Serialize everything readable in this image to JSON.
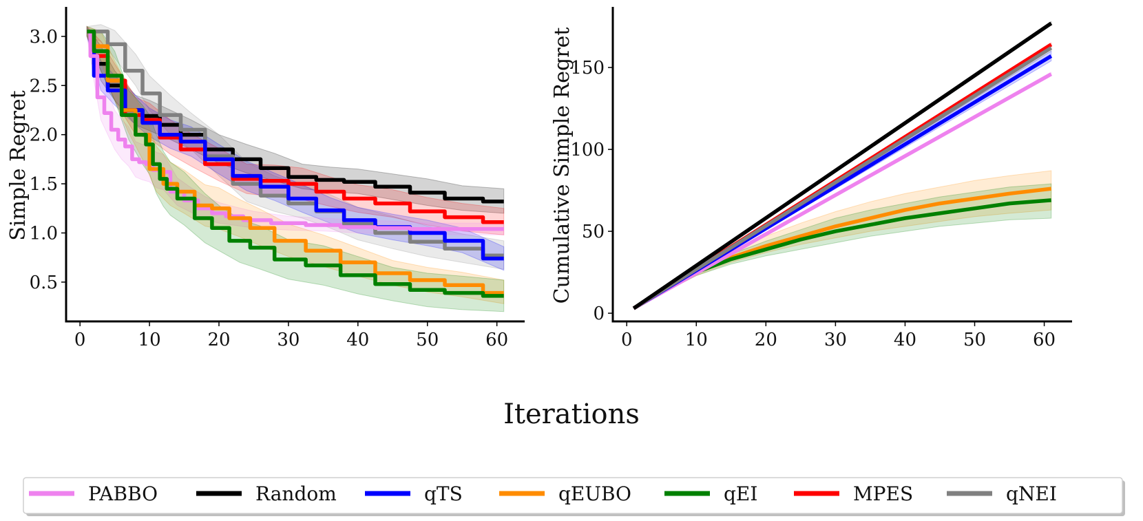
{
  "figure": {
    "xlabel": "Iterations"
  },
  "legend": [
    {
      "name": "PABBO",
      "color": "#ee82ee"
    },
    {
      "name": "Random",
      "color": "#000000"
    },
    {
      "name": "qTS",
      "color": "#0000ff"
    },
    {
      "name": "qEUBO",
      "color": "#ff8c00"
    },
    {
      "name": "qEI",
      "color": "#008000"
    },
    {
      "name": "MPES",
      "color": "#ff0000"
    },
    {
      "name": "qNEI",
      "color": "#808080"
    }
  ],
  "chart_data": [
    {
      "type": "line",
      "title": "",
      "xlabel": "",
      "ylabel": "Simple Regret",
      "xlim": [
        -2,
        64
      ],
      "ylim": [
        0.1,
        3.3
      ],
      "xticks": [
        0,
        10,
        20,
        30,
        40,
        50,
        60
      ],
      "yticks": [
        0.5,
        1.0,
        1.5,
        2.0,
        2.5,
        3.0
      ],
      "ytick_labels": [
        "0.5",
        "1.0",
        "1.5",
        "2.0",
        "2.5",
        "3.0"
      ],
      "grid": false,
      "series": [
        {
          "name": "Random",
          "color": "#000000",
          "x": [
            1,
            3,
            5,
            8,
            10,
            13,
            16,
            20,
            24,
            28,
            32,
            36,
            40,
            45,
            50,
            55,
            61
          ],
          "y": [
            3.05,
            2.72,
            2.5,
            2.25,
            2.19,
            2.1,
            2.0,
            1.85,
            1.75,
            1.66,
            1.57,
            1.54,
            1.52,
            1.47,
            1.41,
            1.35,
            1.32
          ],
          "lower": [
            3.0,
            2.55,
            2.35,
            2.1,
            2.04,
            1.95,
            1.85,
            1.71,
            1.61,
            1.53,
            1.45,
            1.42,
            1.4,
            1.34,
            1.28,
            1.23,
            1.2
          ],
          "upper": [
            3.1,
            2.9,
            2.65,
            2.4,
            2.35,
            2.25,
            2.15,
            2.0,
            1.9,
            1.81,
            1.7,
            1.67,
            1.65,
            1.6,
            1.55,
            1.48,
            1.45
          ]
        },
        {
          "name": "qNEI",
          "color": "#808080",
          "x": [
            1,
            3,
            5,
            8,
            10,
            13,
            16,
            20,
            24,
            28,
            32,
            36,
            40,
            45,
            50,
            55,
            61
          ],
          "y": [
            3.05,
            3.05,
            2.92,
            2.65,
            2.42,
            2.2,
            2.05,
            1.78,
            1.5,
            1.38,
            1.3,
            1.22,
            1.09,
            1.0,
            0.91,
            0.84,
            0.77
          ],
          "lower": [
            3.0,
            2.95,
            2.78,
            2.5,
            2.25,
            2.0,
            1.85,
            1.58,
            1.32,
            1.22,
            1.15,
            1.05,
            0.93,
            0.84,
            0.76,
            0.7,
            0.63
          ],
          "upper": [
            3.1,
            3.12,
            3.06,
            2.82,
            2.6,
            2.4,
            2.22,
            2.0,
            1.72,
            1.58,
            1.48,
            1.39,
            1.26,
            1.17,
            1.07,
            0.99,
            0.92
          ]
        },
        {
          "name": "MPES",
          "color": "#ff0000",
          "x": [
            1,
            3,
            5,
            8,
            10,
            13,
            16,
            20,
            24,
            28,
            32,
            36,
            40,
            45,
            50,
            55,
            61
          ],
          "y": [
            3.05,
            2.8,
            2.55,
            2.2,
            2.15,
            1.97,
            1.85,
            1.7,
            1.55,
            1.53,
            1.5,
            1.42,
            1.35,
            1.3,
            1.22,
            1.16,
            1.11
          ],
          "lower": [
            3.0,
            2.65,
            2.35,
            2.0,
            1.96,
            1.8,
            1.68,
            1.53,
            1.4,
            1.37,
            1.34,
            1.27,
            1.21,
            1.16,
            1.08,
            1.02,
            0.98
          ],
          "upper": [
            3.1,
            2.95,
            2.72,
            2.38,
            2.32,
            2.15,
            2.01,
            1.86,
            1.7,
            1.69,
            1.66,
            1.57,
            1.49,
            1.44,
            1.36,
            1.3,
            1.25
          ]
        },
        {
          "name": "qTS",
          "color": "#0000ff",
          "x": [
            1,
            3,
            5,
            8,
            10,
            13,
            16,
            20,
            24,
            28,
            32,
            36,
            40,
            45,
            50,
            55,
            61
          ],
          "y": [
            3.05,
            2.6,
            2.45,
            2.25,
            2.12,
            2.0,
            1.93,
            1.75,
            1.58,
            1.47,
            1.35,
            1.23,
            1.13,
            1.06,
            1.0,
            0.92,
            0.74
          ],
          "lower": [
            3.0,
            2.45,
            2.3,
            2.1,
            1.98,
            1.86,
            1.78,
            1.6,
            1.43,
            1.33,
            1.21,
            1.1,
            1.0,
            0.93,
            0.87,
            0.8,
            0.62
          ],
          "upper": [
            3.1,
            2.75,
            2.6,
            2.4,
            2.27,
            2.15,
            2.08,
            1.9,
            1.73,
            1.61,
            1.49,
            1.36,
            1.26,
            1.19,
            1.13,
            1.05,
            0.86
          ]
        },
        {
          "name": "PABBO",
          "color": "#ee82ee",
          "x": [
            1,
            2,
            3,
            4,
            5,
            6,
            7,
            8,
            9,
            10,
            11,
            12,
            14,
            16,
            18,
            20,
            22,
            25,
            30,
            35,
            40,
            45,
            50,
            55,
            61
          ],
          "y": [
            3.05,
            2.8,
            2.38,
            2.22,
            2.05,
            1.95,
            1.88,
            1.75,
            1.72,
            1.7,
            1.64,
            1.62,
            1.42,
            1.33,
            1.25,
            1.2,
            1.17,
            1.13,
            1.1,
            1.08,
            1.06,
            1.05,
            1.04,
            1.04,
            1.04
          ],
          "lower": [
            3.0,
            2.55,
            2.15,
            2.0,
            1.85,
            1.75,
            1.68,
            1.57,
            1.54,
            1.52,
            1.46,
            1.44,
            1.28,
            1.21,
            1.14,
            1.1,
            1.08,
            1.05,
            1.03,
            1.02,
            1.0,
            0.99,
            0.99,
            0.98,
            0.98
          ],
          "upper": [
            3.1,
            3.05,
            2.6,
            2.45,
            2.25,
            2.15,
            2.08,
            1.93,
            1.9,
            1.88,
            1.82,
            1.8,
            1.56,
            1.46,
            1.37,
            1.31,
            1.27,
            1.22,
            1.17,
            1.15,
            1.13,
            1.12,
            1.1,
            1.1,
            1.1
          ]
        },
        {
          "name": "qEUBO",
          "color": "#ff8c00",
          "x": [
            1,
            3,
            5,
            7,
            9,
            11,
            13,
            15,
            18,
            20,
            23,
            26,
            30,
            35,
            40,
            45,
            50,
            55,
            61
          ],
          "y": [
            3.05,
            2.9,
            2.55,
            2.25,
            2.0,
            1.65,
            1.5,
            1.42,
            1.28,
            1.25,
            1.15,
            1.05,
            0.92,
            0.82,
            0.7,
            0.59,
            0.52,
            0.47,
            0.39
          ],
          "lower": [
            3.0,
            2.75,
            2.35,
            2.02,
            1.75,
            1.42,
            1.28,
            1.2,
            1.07,
            1.04,
            0.96,
            0.87,
            0.76,
            0.66,
            0.56,
            0.47,
            0.4,
            0.35,
            0.28
          ],
          "upper": [
            3.1,
            3.05,
            2.75,
            2.48,
            2.25,
            1.88,
            1.72,
            1.64,
            1.49,
            1.46,
            1.34,
            1.24,
            1.09,
            0.98,
            0.85,
            0.72,
            0.65,
            0.6,
            0.52
          ]
        },
        {
          "name": "qEI",
          "color": "#008000",
          "x": [
            1,
            3,
            5,
            7,
            9,
            10,
            11,
            12,
            13,
            15,
            18,
            20,
            23,
            26,
            30,
            35,
            40,
            45,
            50,
            55,
            61
          ],
          "y": [
            3.05,
            2.85,
            2.6,
            2.2,
            2.0,
            1.9,
            1.7,
            1.55,
            1.45,
            1.35,
            1.15,
            1.05,
            0.92,
            0.85,
            0.73,
            0.67,
            0.57,
            0.48,
            0.42,
            0.39,
            0.36
          ],
          "lower": [
            3.0,
            2.65,
            2.35,
            1.95,
            1.7,
            1.6,
            1.4,
            1.27,
            1.18,
            1.08,
            0.9,
            0.82,
            0.7,
            0.63,
            0.53,
            0.47,
            0.38,
            0.31,
            0.25,
            0.22,
            0.2
          ],
          "upper": [
            3.1,
            3.05,
            2.85,
            2.45,
            2.3,
            2.2,
            2.0,
            1.83,
            1.72,
            1.62,
            1.4,
            1.28,
            1.14,
            1.07,
            0.93,
            0.87,
            0.76,
            0.65,
            0.59,
            0.56,
            0.52
          ]
        }
      ]
    },
    {
      "type": "line",
      "title": "",
      "xlabel": "",
      "ylabel": "Cumulative Simple Regret",
      "xlim": [
        -2,
        64
      ],
      "ylim": [
        -5,
        187
      ],
      "xticks": [
        0,
        10,
        20,
        30,
        40,
        50,
        60
      ],
      "yticks": [
        0,
        50,
        100,
        150
      ],
      "ytick_labels": [
        "0",
        "50",
        "100",
        "150"
      ],
      "grid": false,
      "series": [
        {
          "name": "qEUBO",
          "color": "#ff8c00",
          "x": [
            1,
            5,
            10,
            15,
            20,
            25,
            30,
            35,
            40,
            45,
            50,
            55,
            61
          ],
          "y": [
            3,
            13,
            25,
            34,
            41,
            47,
            53,
            58,
            63,
            67,
            70,
            73,
            76
          ],
          "lower": [
            3,
            12,
            23,
            31,
            37,
            42,
            46,
            50,
            53,
            56,
            59,
            61,
            63
          ],
          "upper": [
            3,
            14,
            27,
            38,
            47,
            55,
            62,
            68,
            73,
            77,
            81,
            84,
            87
          ]
        },
        {
          "name": "qEI",
          "color": "#008000",
          "x": [
            1,
            5,
            10,
            15,
            20,
            25,
            30,
            35,
            40,
            45,
            50,
            55,
            61
          ],
          "y": [
            3,
            13,
            25,
            33,
            39,
            45,
            50,
            54,
            58,
            61,
            64,
            67,
            69
          ],
          "lower": [
            3,
            12,
            23,
            30,
            35,
            39,
            43,
            47,
            50,
            53,
            55,
            57,
            58
          ],
          "upper": [
            3,
            14,
            27,
            36,
            44,
            51,
            58,
            63,
            67,
            71,
            74,
            77,
            79
          ]
        },
        {
          "name": "PABBO",
          "color": "#ee82ee",
          "x": [
            1,
            61
          ],
          "y": [
            3,
            146
          ],
          "lower": [
            3,
            145
          ],
          "upper": [
            3,
            147
          ]
        },
        {
          "name": "qTS",
          "color": "#0000ff",
          "x": [
            1,
            61
          ],
          "y": [
            3,
            157
          ],
          "lower": [
            3,
            154
          ],
          "upper": [
            3,
            160
          ]
        },
        {
          "name": "MPES",
          "color": "#ff0000",
          "x": [
            1,
            61
          ],
          "y": [
            3,
            164
          ],
          "lower": [
            3,
            163
          ],
          "upper": [
            3,
            165
          ]
        },
        {
          "name": "qNEI",
          "color": "#808080",
          "x": [
            1,
            61
          ],
          "y": [
            3,
            162
          ],
          "lower": [
            3,
            160
          ],
          "upper": [
            3,
            164
          ]
        },
        {
          "name": "Random",
          "color": "#000000",
          "x": [
            1,
            61
          ],
          "y": [
            3,
            177
          ],
          "lower": [
            3,
            176
          ],
          "upper": [
            3,
            178
          ]
        }
      ]
    }
  ]
}
